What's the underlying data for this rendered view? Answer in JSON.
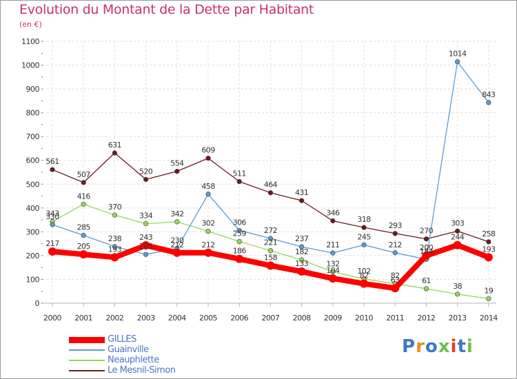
{
  "header": {
    "title": "Evolution du Montant de la Dette par Habitant",
    "unit": "(en €)"
  },
  "chart_data": {
    "type": "line",
    "title": "Evolution du Montant de la Dette par Habitant",
    "ylabel": "(en €)",
    "xlabel": "",
    "ylim": [
      0,
      1100
    ],
    "yticks": [
      0,
      100,
      200,
      300,
      400,
      500,
      600,
      700,
      800,
      900,
      1000,
      1100
    ],
    "grid": true,
    "legend_position": "bottom-left",
    "categories": [
      "2000",
      "2001",
      "2002",
      "2003",
      "2004",
      "2005",
      "2006",
      "2007",
      "2008",
      "2009",
      "2010",
      "2011",
      "2012",
      "2013",
      "2014"
    ],
    "series": [
      {
        "name": "Le Mesnil-Simon",
        "color": "#6b1a1f",
        "values": [
          561,
          507,
          631,
          520,
          554,
          609,
          511,
          464,
          431,
          346,
          318,
          293,
          270,
          303,
          258
        ]
      },
      {
        "name": "Neauphlette",
        "color": "#96d65a",
        "values": [
          343,
          416,
          370,
          334,
          342,
          302,
          259,
          221,
          182,
          132,
          102,
          82,
          61,
          38,
          19
        ]
      },
      {
        "name": "Guainville",
        "color": "#5b9bd1",
        "values": [
          330,
          285,
          238,
          205,
          230,
          458,
          306,
          272,
          237,
          211,
          245,
          212,
          184,
          1014,
          843
        ]
      },
      {
        "name": "GILLES",
        "color": "#ff0000",
        "values": [
          217,
          205,
          193,
          243,
          212,
          212,
          186,
          158,
          133,
          104,
          82,
          63,
          200,
          244,
          193
        ]
      }
    ]
  },
  "legend": {
    "items": [
      {
        "label": "GILLES",
        "color": "#ff0000",
        "text_color": "#4c74c9"
      },
      {
        "label": "Guainville",
        "color": "#5b9bd1",
        "text_color": "#4c74c9"
      },
      {
        "label": "Neauphlette",
        "color": "#96d65a",
        "text_color": "#4c74c9"
      },
      {
        "label": "Le Mesnil-Simon",
        "color": "#6b1a1f",
        "text_color": "#4c74c9"
      }
    ]
  },
  "logo": {
    "text": "Proxiti",
    "letter_colors": [
      "#3b78c8",
      "#f08a1c",
      "#3b78c8",
      "#6cc04a",
      "#e83e2f",
      "#3b78c8",
      "#6cc04a"
    ]
  }
}
